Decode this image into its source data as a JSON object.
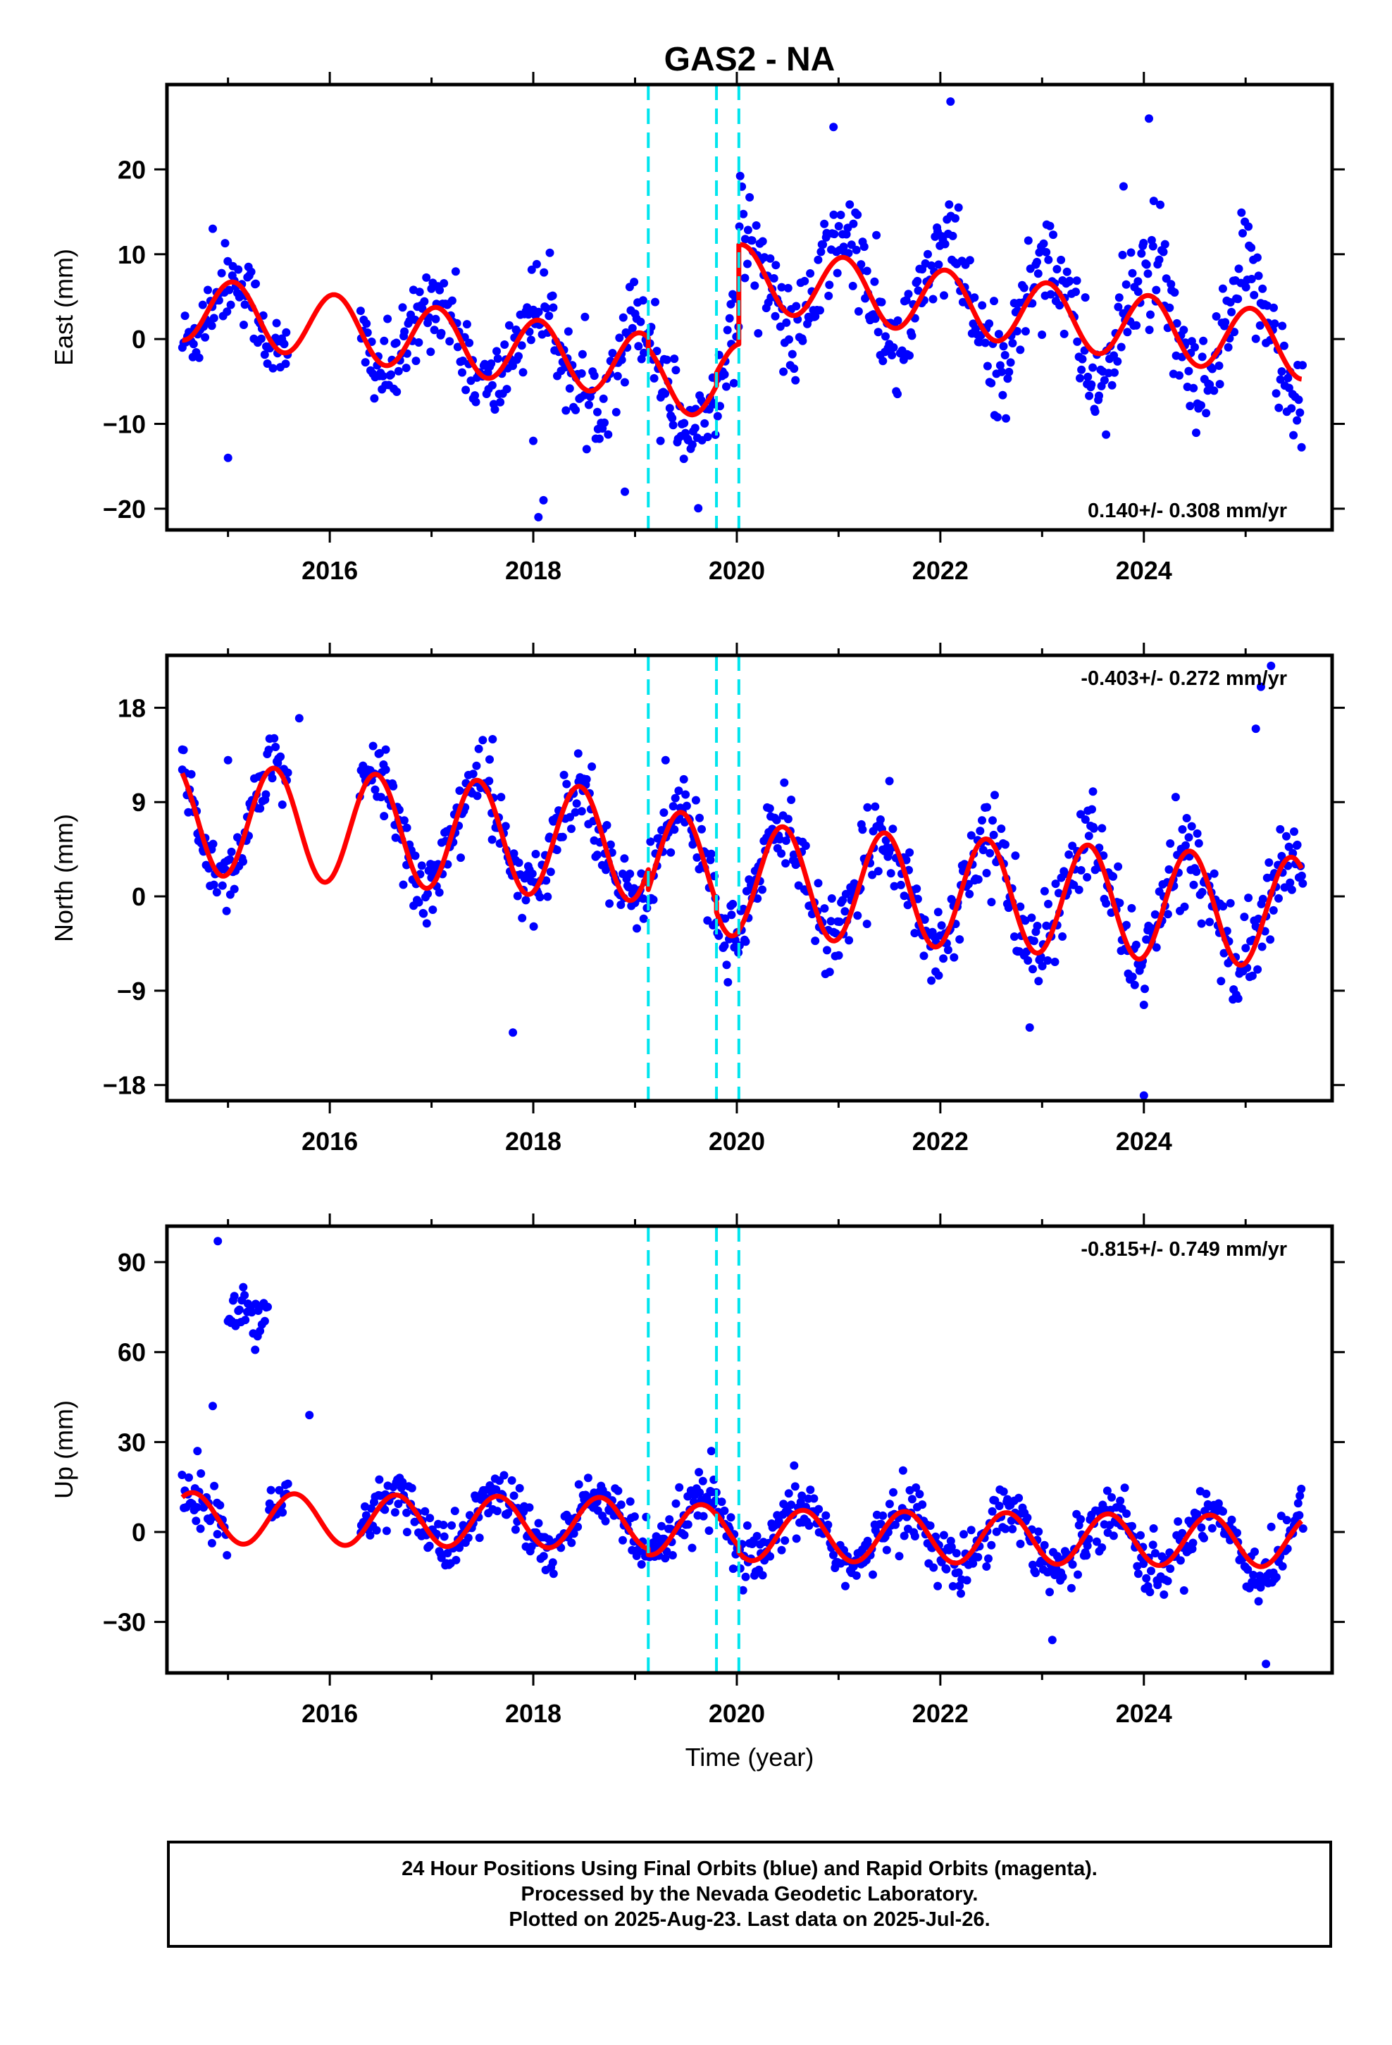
{
  "title": "GAS2 - NA",
  "footer": {
    "line1": "24 Hour Positions Using Final Orbits (blue) and Rapid Orbits (magenta).",
    "line2": "Processed by the Nevada Geodetic Laboratory.",
    "line3": "Plotted on 2025-Aug-23. Last data on 2025-Jul-26."
  },
  "colors": {
    "points": "#0000ff",
    "model": "#ff0000",
    "events": "#00e5ee",
    "frame": "#000000"
  },
  "chart_data": [
    {
      "type": "scatter",
      "component": "East",
      "ylabel": "East (mm)",
      "xlabel": "",
      "xlim": [
        2014.4,
        2025.85
      ],
      "ylim": [
        -22.5,
        30
      ],
      "xticks": [
        2016,
        2018,
        2020,
        2022,
        2024
      ],
      "tick_labels": [
        "2016",
        "2018",
        "2020",
        "2022",
        "2024"
      ],
      "yticks": [
        -20,
        -10,
        0,
        10,
        20
      ],
      "ytick_labels": [
        "−20",
        "−10",
        "0",
        "10",
        "20"
      ],
      "rate": "0.140+/- 0.308 mm/yr",
      "rate_position": "bottom-right",
      "event_lines": [
        2019.13,
        2019.8,
        2020.02
      ],
      "model": {
        "trend": -1.5,
        "amp": 3.8,
        "phase_peak": 0.05,
        "segments": [
          {
            "from": 2014.55,
            "to": 2019.13,
            "offset": -4.5
          },
          {
            "from": 2019.13,
            "to": 2019.8,
            "offset": -5.8
          },
          {
            "from": 2019.8,
            "to": 2020.02,
            "offset": -4.3
          },
          {
            "from": 2020.02,
            "to": 2025.55,
            "offset": 7.4
          }
        ]
      },
      "scatter": {
        "seasonal_amp": [
          4.0,
          8.0
        ],
        "noise": [
          2.2,
          3.5
        ],
        "gaps": [
          [
            2015.6,
            2016.3
          ]
        ],
        "outliers": [
          [
            2014.85,
            13
          ],
          [
            2015.0,
            -14
          ],
          [
            2018.05,
            -21
          ],
          [
            2018.1,
            -19
          ],
          [
            2018.0,
            -12
          ],
          [
            2018.9,
            -18
          ],
          [
            2019.25,
            -12
          ],
          [
            2020.95,
            25
          ],
          [
            2022.1,
            28
          ],
          [
            2023.8,
            18
          ],
          [
            2024.05,
            26
          ]
        ]
      }
    },
    {
      "type": "scatter",
      "component": "North",
      "ylabel": "North (mm)",
      "xlabel": "",
      "xlim": [
        2014.4,
        2025.85
      ],
      "ylim": [
        -19.5,
        23
      ],
      "xticks": [
        2016,
        2018,
        2020,
        2022,
        2024
      ],
      "tick_labels": [
        "2016",
        "2018",
        "2020",
        "2022",
        "2024"
      ],
      "yticks": [
        -18,
        -9,
        0,
        9,
        18
      ],
      "ytick_labels": [
        "−18",
        "−9",
        "0",
        "9",
        "18"
      ],
      "rate": "-0.403+/- 0.272 mm/yr",
      "rate_position": "top-right",
      "event_lines": [
        2019.13,
        2019.8,
        2020.02
      ],
      "model": {
        "trend": -0.58,
        "amp": 5.3,
        "phase_peak": 0.45,
        "segments": [
          {
            "from": 2014.55,
            "to": 2019.13,
            "offset": 4.3
          },
          {
            "from": 2019.13,
            "to": 2019.8,
            "offset": 2.4
          },
          {
            "from": 2019.8,
            "to": 2020.02,
            "offset": 1.5
          },
          {
            "from": 2020.02,
            "to": 2025.55,
            "offset": 1.6
          }
        ]
      },
      "scatter": {
        "seasonal_amp": [
          5.3,
          5.3
        ],
        "noise": [
          1.6,
          2.2
        ],
        "gaps": [
          [
            2015.6,
            2016.3
          ]
        ],
        "outliers": [
          [
            2014.55,
            14
          ],
          [
            2015.0,
            13
          ],
          [
            2015.7,
            17
          ],
          [
            2016.55,
            14
          ],
          [
            2017.6,
            15
          ],
          [
            2017.8,
            -13
          ],
          [
            2019.3,
            13
          ],
          [
            2021.5,
            11
          ],
          [
            2023.5,
            10
          ],
          [
            2024.0,
            -19
          ],
          [
            2025.1,
            16
          ],
          [
            2025.15,
            20
          ],
          [
            2025.25,
            22
          ]
        ]
      }
    },
    {
      "type": "scatter",
      "component": "Up",
      "ylabel": "Up (mm)",
      "xlabel": "Time (year)",
      "xlim": [
        2014.4,
        2025.85
      ],
      "ylim": [
        -47,
        102
      ],
      "xticks": [
        2016,
        2018,
        2020,
        2022,
        2024
      ],
      "tick_labels": [
        "2016",
        "2018",
        "2020",
        "2022",
        "2024"
      ],
      "yticks": [
        -30,
        0,
        30,
        60,
        90
      ],
      "ytick_labels": [
        "−30",
        "0",
        "30",
        "60",
        "90"
      ],
      "rate": "-0.815+/- 0.749 mm/yr",
      "rate_position": "top-right",
      "event_lines": [
        2019.13,
        2019.8,
        2020.02
      ],
      "model": {
        "trend": -0.4,
        "amp": 8.5,
        "phase_peak": 0.65,
        "segments": [
          {
            "from": 2014.55,
            "to": 2019.13,
            "offset": 2.5
          },
          {
            "from": 2019.13,
            "to": 2019.8,
            "offset": 0.5
          },
          {
            "from": 2019.8,
            "to": 2020.02,
            "offset": 1.0
          },
          {
            "from": 2020.02,
            "to": 2025.55,
            "offset": -1.0
          }
        ]
      },
      "scatter": {
        "seasonal_amp": [
          8.5,
          11.0
        ],
        "noise": [
          4.5,
          5.0
        ],
        "gaps": [
          [
            2015.6,
            2016.3
          ]
        ],
        "cluster": {
          "from": 2015.0,
          "to": 2015.4,
          "center": 72,
          "spread": 7
        },
        "outliers": [
          [
            2014.85,
            42
          ],
          [
            2014.9,
            97
          ],
          [
            2015.8,
            39
          ],
          [
            2014.7,
            27
          ],
          [
            2019.75,
            27
          ],
          [
            2025.2,
            -44
          ],
          [
            2023.1,
            -36
          ]
        ]
      }
    }
  ]
}
